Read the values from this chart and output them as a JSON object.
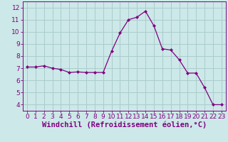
{
  "x": [
    0,
    1,
    2,
    3,
    4,
    5,
    6,
    7,
    8,
    9,
    10,
    11,
    12,
    13,
    14,
    15,
    16,
    17,
    18,
    19,
    20,
    21,
    22,
    23
  ],
  "y": [
    7.1,
    7.1,
    7.2,
    7.0,
    6.9,
    6.65,
    6.7,
    6.65,
    6.65,
    6.65,
    8.4,
    9.9,
    11.0,
    11.2,
    11.7,
    10.5,
    8.6,
    8.5,
    7.7,
    6.6,
    6.6,
    5.4,
    4.0,
    4.0
  ],
  "line_color": "#800080",
  "marker": "D",
  "marker_size": 2,
  "bg_color": "#cce8e8",
  "grid_color": "#aacccc",
  "xlabel": "Windchill (Refroidissement éolien,°C)",
  "xlim": [
    -0.5,
    23.5
  ],
  "ylim": [
    3.5,
    12.5
  ],
  "yticks": [
    4,
    5,
    6,
    7,
    8,
    9,
    10,
    11,
    12
  ],
  "xticks": [
    0,
    1,
    2,
    3,
    4,
    5,
    6,
    7,
    8,
    9,
    10,
    11,
    12,
    13,
    14,
    15,
    16,
    17,
    18,
    19,
    20,
    21,
    22,
    23
  ],
  "tick_color": "#800080",
  "label_color": "#800080",
  "border_color": "#800080",
  "tick_fontsize": 6.5,
  "xlabel_fontsize": 7.5
}
